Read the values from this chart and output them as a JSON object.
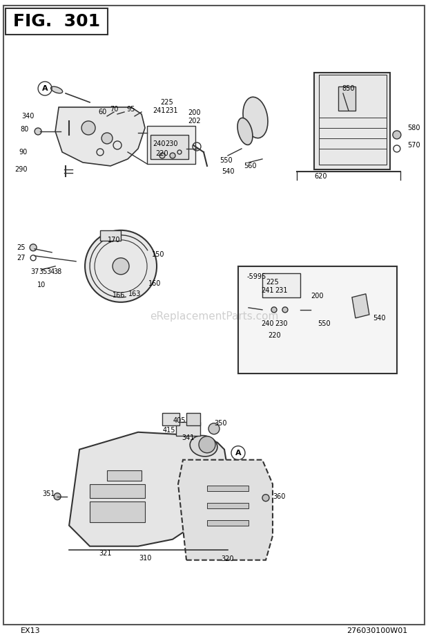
{
  "title": "FIG. 301",
  "footer_left": "EX13",
  "footer_right": "276030100W01",
  "watermark": "eReplacementParts.com",
  "bg_color": "#ffffff",
  "border_color": "#000000",
  "line_color": "#333333",
  "text_color": "#000000"
}
